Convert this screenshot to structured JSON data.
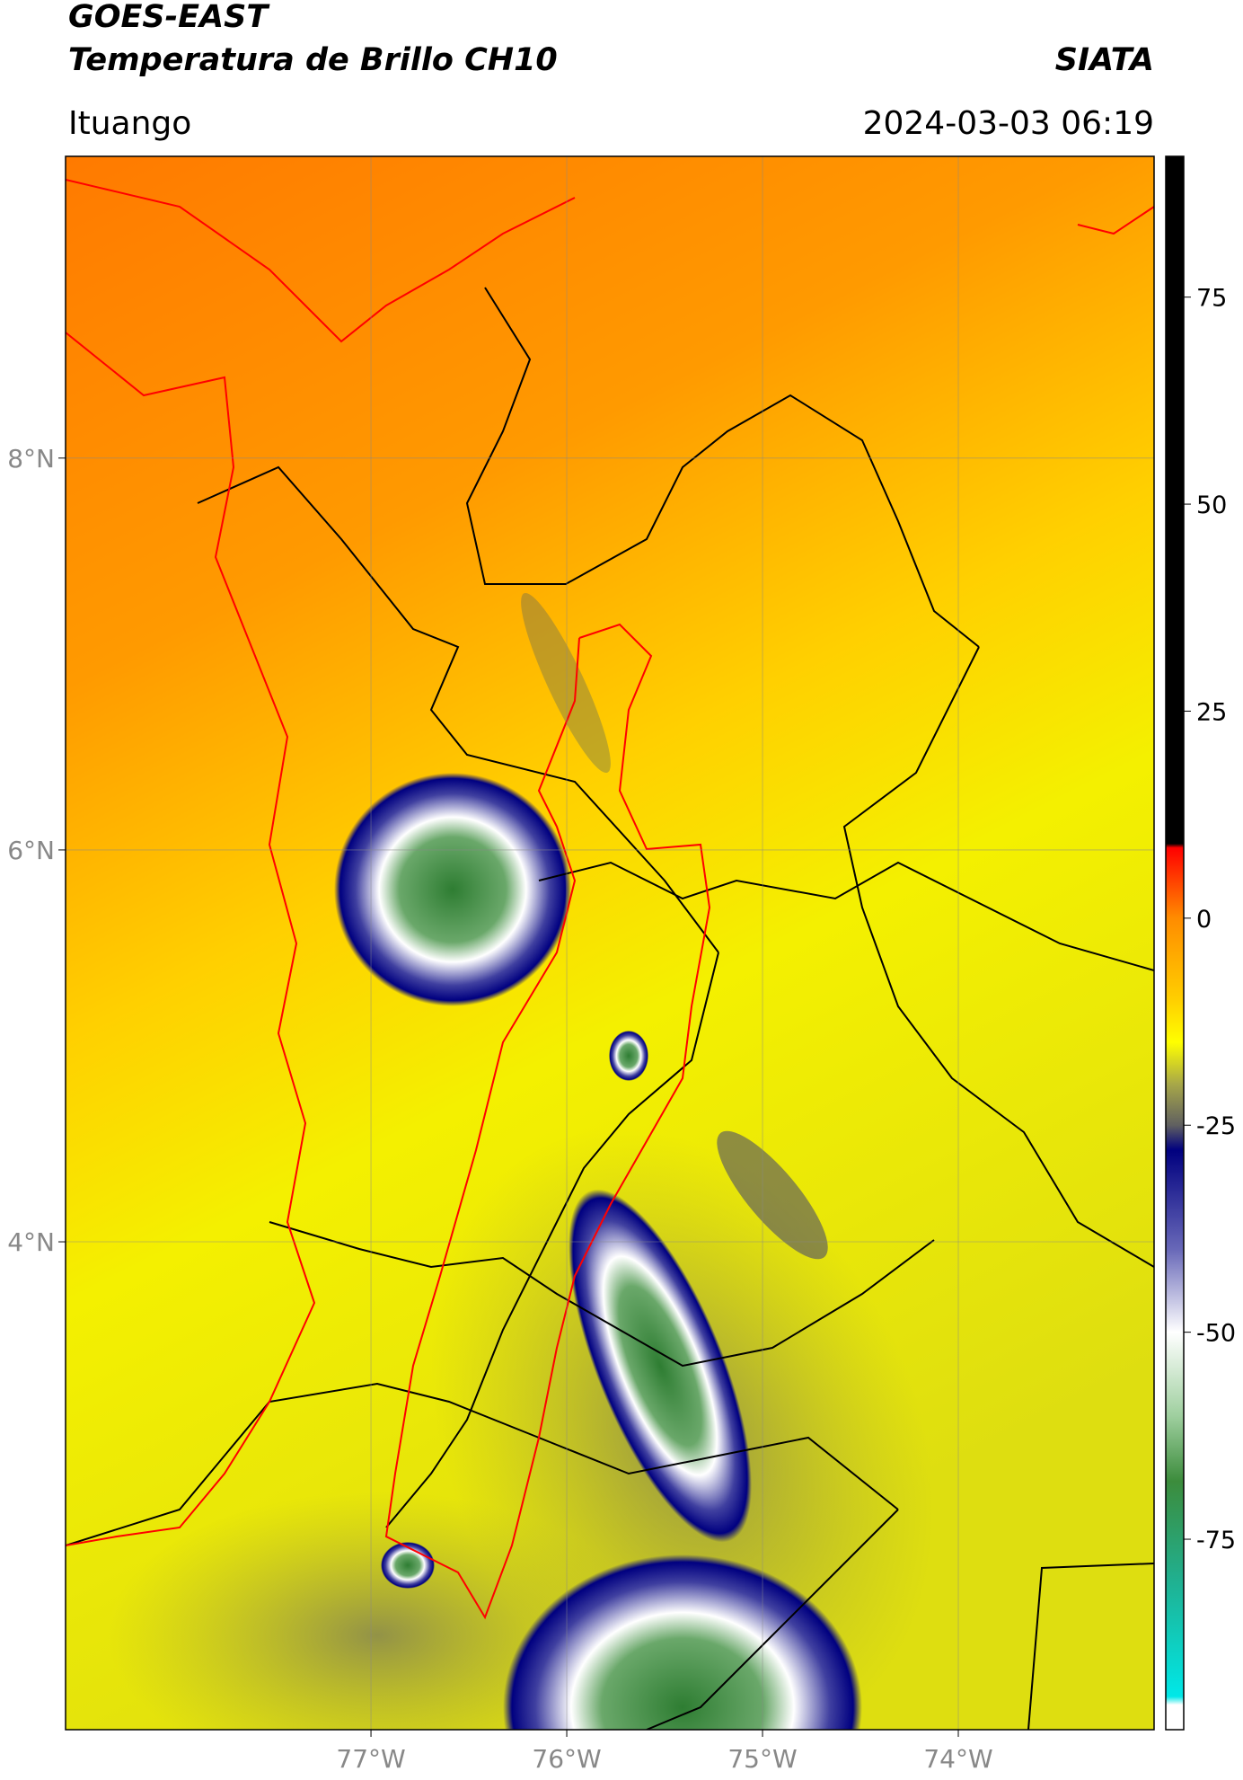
{
  "header": {
    "satellite": "GOES-EAST",
    "product": "Temperatura de Brillo CH10",
    "agency": "SIATA",
    "location": "Ituango",
    "datetime": "2024-03-03 06:19"
  },
  "map": {
    "xlim": [
      -78.56,
      -73.0
    ],
    "ylim": [
      1.51,
      9.54
    ],
    "xticks": [
      {
        "value": -77,
        "label": "77°W"
      },
      {
        "value": -76,
        "label": "76°W"
      },
      {
        "value": -75,
        "label": "75°W"
      },
      {
        "value": -74,
        "label": "74°W"
      }
    ],
    "yticks": [
      {
        "value": 8,
        "label": "8°N"
      },
      {
        "value": 6,
        "label": "6°N"
      },
      {
        "value": 4,
        "label": "4°N"
      }
    ],
    "grid": true
  },
  "colorbar": {
    "lim": [
      -98,
      92
    ],
    "ticks": [
      -75,
      -50,
      -25,
      0,
      25,
      50,
      75
    ],
    "colormap": [
      {
        "value": 92,
        "color": "#000000"
      },
      {
        "value": 9,
        "color": "#000000"
      },
      {
        "value": 8.5,
        "color": "#ff0000"
      },
      {
        "value": 0,
        "color": "#ff8c00"
      },
      {
        "value": -10,
        "color": "#ffd000"
      },
      {
        "value": -15,
        "color": "#ffff00"
      },
      {
        "value": -20,
        "color": "#a8a848"
      },
      {
        "value": -25,
        "color": "#606060"
      },
      {
        "value": -28,
        "color": "#00007f"
      },
      {
        "value": -40,
        "color": "#6868b8"
      },
      {
        "value": -50,
        "color": "#ffffff"
      },
      {
        "value": -60,
        "color": "#a0d0a0"
      },
      {
        "value": -68,
        "color": "#3c8c3c"
      },
      {
        "value": -80,
        "color": "#20b090"
      },
      {
        "value": -94,
        "color": "#00e8e8"
      },
      {
        "value": -95,
        "color": "#ffffff"
      },
      {
        "value": -98,
        "color": "#ffffff"
      }
    ]
  }
}
